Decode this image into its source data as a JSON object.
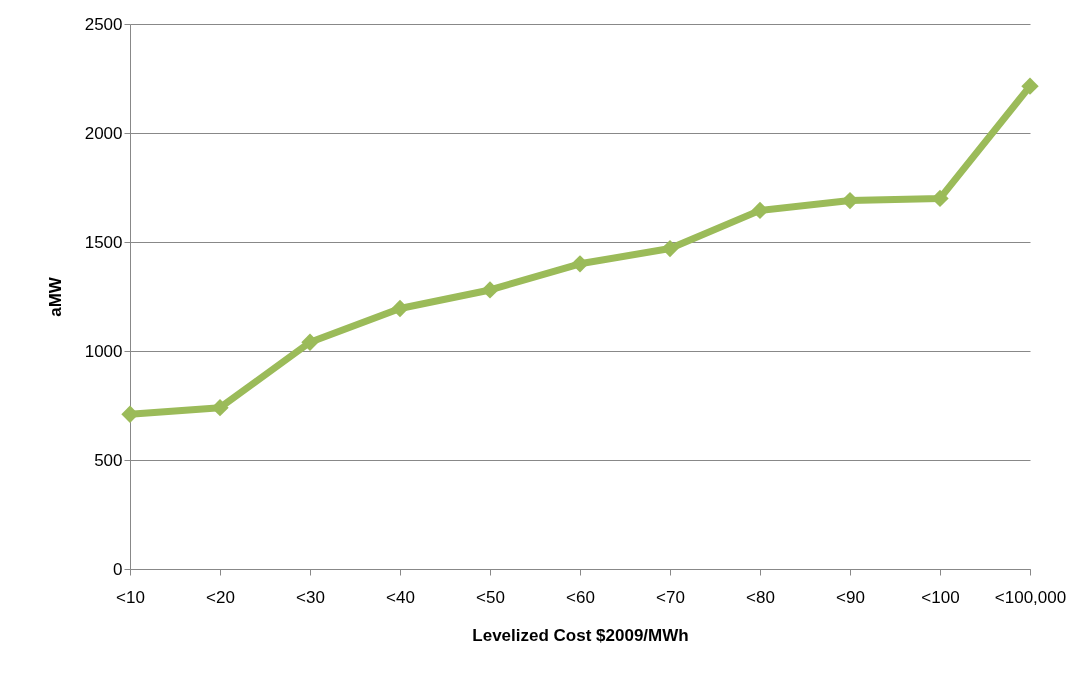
{
  "chart_data": {
    "type": "line",
    "xlabel": "Levelized Cost $2009/MWh",
    "ylabel": "aMW",
    "categories": [
      "<10",
      "<20",
      "<30",
      "<40",
      "<50",
      "<60",
      "<70",
      "<80",
      "<90",
      "<100",
      "<100,000"
    ],
    "series": [
      {
        "color": "#9bbb59",
        "values": [
          710,
          740,
          1040,
          1195,
          1280,
          1400,
          1470,
          1645,
          1690,
          1700,
          2215
        ]
      }
    ],
    "ylim": [
      0,
      2500
    ],
    "yticks": [
      0,
      500,
      1000,
      1500,
      2000,
      2500
    ],
    "grid": "y",
    "marker": "diamond",
    "line_style": "solid",
    "legend": false
  }
}
